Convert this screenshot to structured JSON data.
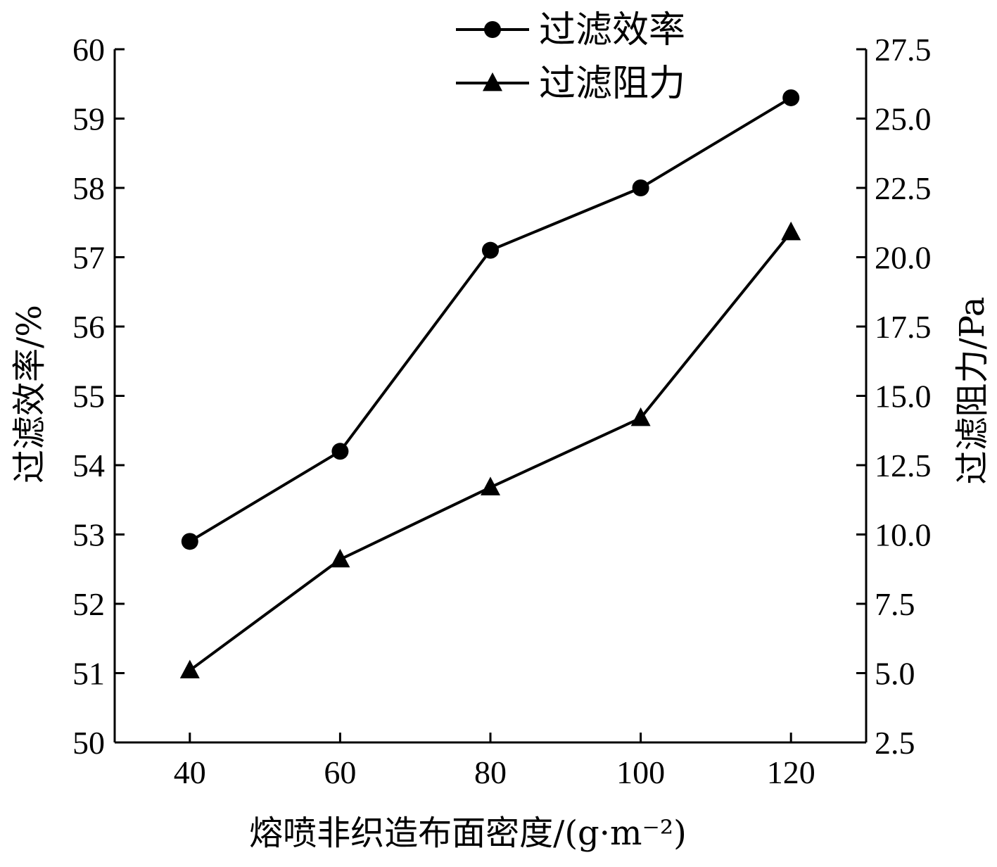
{
  "chart_data": {
    "type": "line",
    "x": [
      40,
      60,
      80,
      100,
      120
    ],
    "xlabel": "熔喷非织造布面密度/(g·m⁻²)",
    "ylabel_left": "过滤效率/%",
    "ylabel_right": "过滤阻力/Pa",
    "xlim": [
      30,
      130
    ],
    "ylim_left": [
      50,
      60
    ],
    "ylim_right": [
      2.5,
      27.5
    ],
    "x_ticks": [
      "40",
      "60",
      "80",
      "100",
      "120"
    ],
    "y_left_ticks": [
      "50",
      "51",
      "52",
      "53",
      "54",
      "55",
      "56",
      "57",
      "58",
      "59",
      "60"
    ],
    "y_right_ticks": [
      "2.5",
      "5.0",
      "7.5",
      "10.0",
      "12.5",
      "15.0",
      "17.5",
      "20.0",
      "22.5",
      "25.0",
      "27.5"
    ],
    "legend_position": "top-center",
    "grid": false,
    "series": [
      {
        "name": "过滤效率",
        "axis": "left",
        "marker": "circle",
        "values": [
          52.9,
          54.2,
          57.1,
          58.0,
          59.3
        ]
      },
      {
        "name": "过滤阻力",
        "axis": "right",
        "marker": "triangle",
        "values": [
          5.1,
          9.1,
          11.7,
          14.2,
          20.9
        ]
      }
    ]
  }
}
